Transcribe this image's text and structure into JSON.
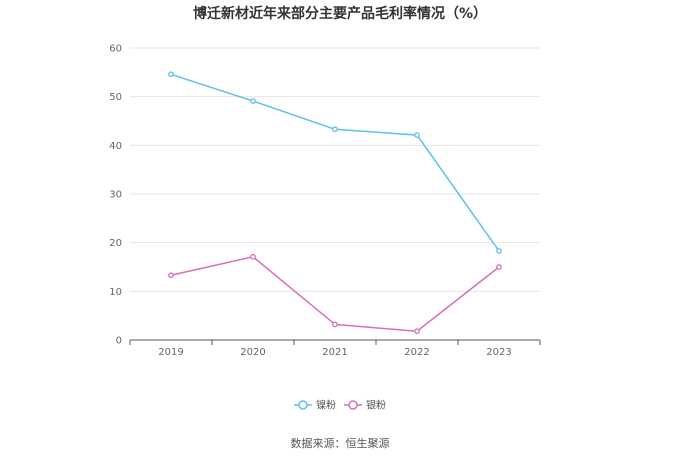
{
  "chart_data": {
    "type": "line",
    "title": "博迁新材近年来部分主要产品毛利率情况（%）",
    "categories": [
      "2019",
      "2020",
      "2021",
      "2022",
      "2023"
    ],
    "ylim": [
      0,
      60
    ],
    "yticks": [
      0,
      10,
      20,
      30,
      40,
      50,
      60
    ],
    "grid": true,
    "legend_position": "bottom-center",
    "series": [
      {
        "name": "镍粉",
        "color": "#5bc0eb",
        "values": [
          54.6,
          49.1,
          43.3,
          42.1,
          18.3
        ]
      },
      {
        "name": "银粉",
        "color": "#d670b6",
        "values": [
          13.3,
          17.1,
          3.2,
          1.8,
          15.0
        ]
      }
    ],
    "source": "数据来源：恒生聚源"
  }
}
